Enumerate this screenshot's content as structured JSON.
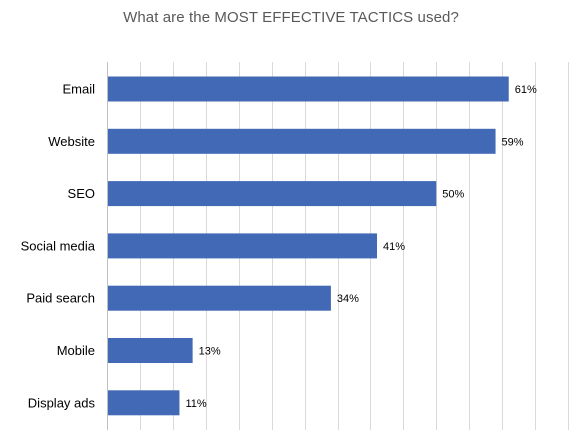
{
  "chart_data": {
    "type": "bar",
    "orientation": "horizontal",
    "title": "What are the MOST EFFECTIVE TACTICS used?",
    "categories": [
      "Email",
      "Website",
      "SEO",
      "Social media",
      "Paid search",
      "Mobile",
      "Display ads"
    ],
    "values": [
      61,
      59,
      50,
      41,
      34,
      13,
      11
    ],
    "data_labels": [
      "61%",
      "59%",
      "50%",
      "41%",
      "34%",
      "13%",
      "11%"
    ],
    "xlim": [
      0,
      70
    ],
    "grid": true,
    "legend": "none",
    "bar_color": "#4169B5",
    "gridline_color": "#D9D9D9"
  }
}
